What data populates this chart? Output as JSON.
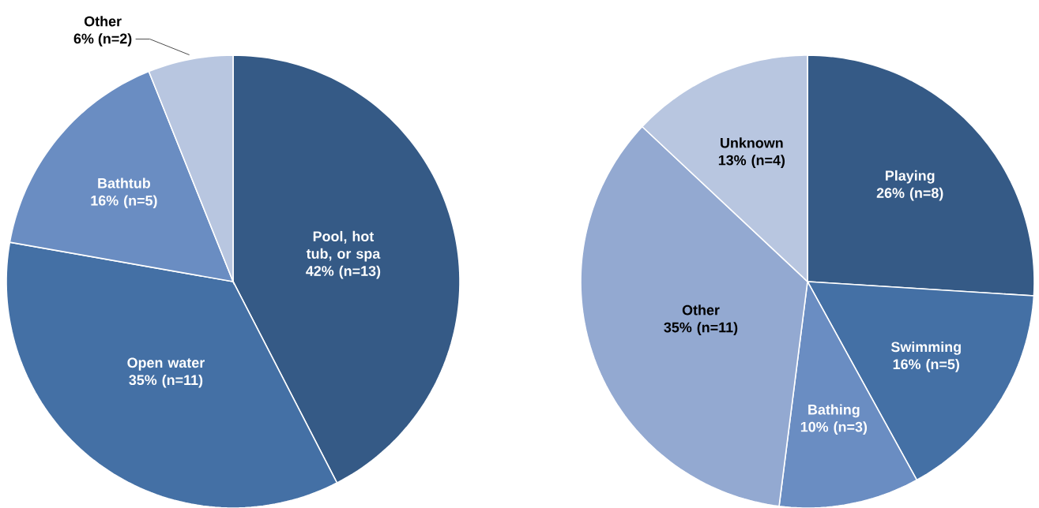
{
  "chart_data": [
    {
      "type": "pie",
      "categories": [
        "Pool, hot tub, or spa",
        "Open water",
        "Bathtub",
        "Other"
      ],
      "values": [
        42,
        35,
        16,
        6
      ],
      "colors": [
        "#355a86",
        "#4470a5",
        "#6a8dc2",
        "#b8c6e0"
      ],
      "value_labels": [
        "42% (n=13)",
        "35% (n=11)",
        "16% (n=5)",
        "6% (n=2)"
      ]
    },
    {
      "type": "pie",
      "categories": [
        "Playing",
        "Swimming",
        "Bathing",
        "Other",
        "Unknown"
      ],
      "values": [
        26,
        16,
        10,
        35,
        13
      ],
      "colors": [
        "#355a86",
        "#4470a5",
        "#6a8dc2",
        "#93a9d1",
        "#b8c6e0"
      ],
      "value_labels": [
        "26% (n=8)",
        "16% (n=5)",
        "10% (n=3)",
        "35% (n=11)",
        "13% (n=4)"
      ]
    }
  ]
}
